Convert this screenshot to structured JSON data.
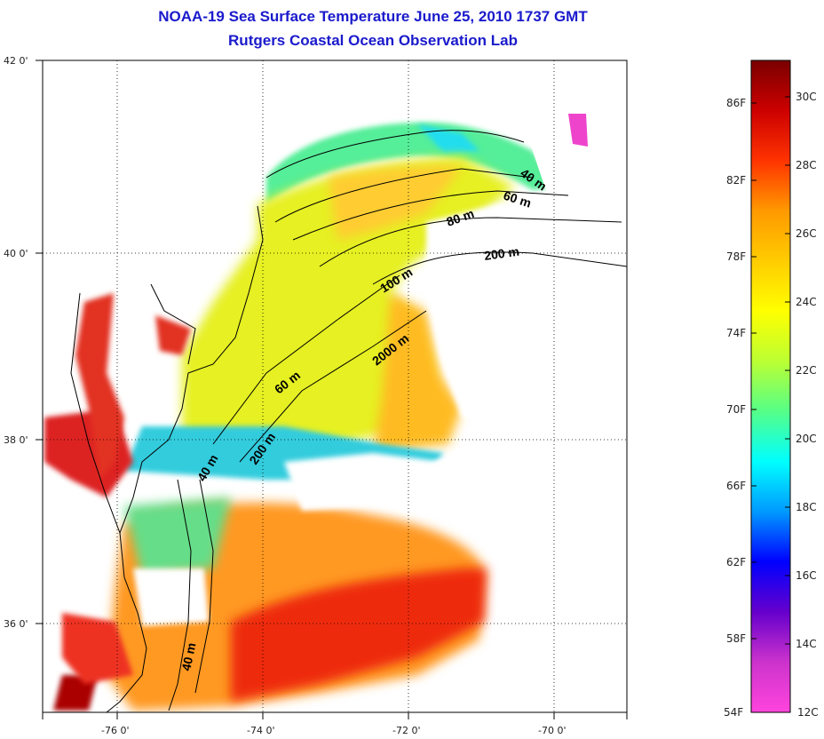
{
  "title": {
    "line1": "NOAA-19 Sea Surface Temperature June 25, 2010 1737 GMT",
    "line2": "Rutgers Coastal Ocean Observation Lab"
  },
  "map": {
    "lat_labels": [
      "42 0'",
      "40 0'",
      "38 0'",
      "36 0'"
    ],
    "lon_labels": [
      "-76 0'",
      "-74 0'",
      "-72 0'",
      "-70 0'"
    ],
    "isobath_labels": [
      "40 m",
      "60 m",
      "80 m",
      "200 m",
      "100 m",
      "60 m",
      "2000 m",
      "200 m",
      "40 m",
      "40 m"
    ]
  },
  "colorbar": {
    "fahrenheit": [
      "86F",
      "82F",
      "78F",
      "74F",
      "70F",
      "66F",
      "62F",
      "58F",
      "54F"
    ],
    "celsius": [
      "30C",
      "28C",
      "26C",
      "24C",
      "22C",
      "20C",
      "18C",
      "16C",
      "14C",
      "12C"
    ],
    "gradient": [
      "#7a0000",
      "#cc0000",
      "#ff3300",
      "#ff9900",
      "#ffcc00",
      "#ffff00",
      "#bbff33",
      "#55ff88",
      "#00ffff",
      "#0099ff",
      "#0000ff",
      "#6600cc",
      "#cc33cc",
      "#ff44dd"
    ]
  }
}
